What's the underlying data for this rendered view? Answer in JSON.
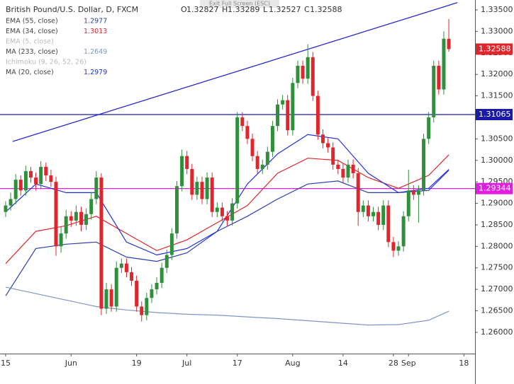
{
  "chart_data": {
    "type": "candlestick",
    "title": "British Pound/U.S. Dollar, D, FXCM",
    "overlay_button": "Exit Full Screen (ESC)",
    "ohlc_letters": [
      "O",
      "H",
      "L",
      "C"
    ],
    "up_color": "#2f8f3a",
    "down_color": "#e0262c",
    "ylim": [
      1.2567,
      1.3373
    ],
    "xlim": [
      -1.12,
      93.2
    ],
    "yticks": [
      {
        "value": 1.26,
        "label": "1.26000"
      },
      {
        "value": 1.265,
        "label": "1.26500"
      },
      {
        "value": 1.27,
        "label": "1.27000"
      },
      {
        "value": 1.275,
        "label": "1.27500"
      },
      {
        "value": 1.28,
        "label": "1.28000"
      },
      {
        "value": 1.285,
        "label": "1.28500"
      },
      {
        "value": 1.29,
        "label": "1.29000"
      },
      {
        "value": 1.295,
        "label": "1.29500"
      },
      {
        "value": 1.3,
        "label": "1.30000"
      },
      {
        "value": 1.305,
        "label": "1.30500"
      },
      {
        "value": 1.31,
        "label": "1.31000"
      },
      {
        "value": 1.315,
        "label": "1.31500"
      },
      {
        "value": 1.32,
        "label": "1.32000"
      },
      {
        "value": 1.325,
        "label": "1.32500"
      },
      {
        "value": 1.33,
        "label": "1.33000"
      },
      {
        "value": 1.335,
        "label": "1.33500"
      }
    ],
    "xticks": [
      {
        "value": 0,
        "label": "15"
      },
      {
        "value": 13,
        "label": "Jun"
      },
      {
        "value": 26,
        "label": "19"
      },
      {
        "value": 36,
        "label": "Jul"
      },
      {
        "value": 46,
        "label": "17"
      },
      {
        "value": 57,
        "label": "Aug"
      },
      {
        "value": 67,
        "label": "14"
      },
      {
        "value": 77,
        "label": "28"
      },
      {
        "value": 80,
        "label": "Sep"
      },
      {
        "value": 91,
        "label": "18"
      }
    ],
    "candles": [
      [
        1.288,
        1.2905,
        1.2868,
        1.2895
      ],
      [
        1.2895,
        1.2925,
        1.2883,
        1.291
      ],
      [
        1.291,
        1.2968,
        1.2898,
        1.2955
      ],
      [
        1.2955,
        1.2965,
        1.2918,
        1.293
      ],
      [
        1.293,
        1.2988,
        1.2918,
        1.2975
      ],
      [
        1.2975,
        1.2985,
        1.2948,
        1.296
      ],
      [
        1.296,
        1.2972,
        1.293,
        1.2945
      ],
      [
        1.2945,
        1.2998,
        1.2933,
        1.2985
      ],
      [
        1.2985,
        1.2995,
        1.2952,
        1.2965
      ],
      [
        1.2965,
        1.2978,
        1.2938,
        1.295
      ],
      [
        1.295,
        1.2962,
        1.2778,
        1.28
      ],
      [
        1.28,
        1.2845,
        1.2785,
        1.283
      ],
      [
        1.283,
        1.2885,
        1.2818,
        1.287
      ],
      [
        1.287,
        1.2882,
        1.2845,
        1.286
      ],
      [
        1.286,
        1.2895,
        1.2848,
        1.288
      ],
      [
        1.288,
        1.2892,
        1.2835,
        1.285
      ],
      [
        1.285,
        1.2888,
        1.2838,
        1.2875
      ],
      [
        1.2875,
        1.2925,
        1.2862,
        1.291
      ],
      [
        1.291,
        1.2975,
        1.2898,
        1.296
      ],
      [
        1.296,
        1.297,
        1.264,
        1.2655
      ],
      [
        1.2655,
        1.2715,
        1.2643,
        1.27
      ],
      [
        1.27,
        1.2712,
        1.2648,
        1.266
      ],
      [
        1.266,
        1.2765,
        1.2648,
        1.275
      ],
      [
        1.275,
        1.2772,
        1.2738,
        1.276
      ],
      [
        1.276,
        1.2772,
        1.2728,
        1.274
      ],
      [
        1.274,
        1.2752,
        1.2708,
        1.272
      ],
      [
        1.272,
        1.2732,
        1.2648,
        1.266
      ],
      [
        1.266,
        1.2672,
        1.2625,
        1.264
      ],
      [
        1.264,
        1.2692,
        1.2628,
        1.268
      ],
      [
        1.268,
        1.2712,
        1.2668,
        1.27
      ],
      [
        1.27,
        1.2728,
        1.2688,
        1.2715
      ],
      [
        1.2715,
        1.2762,
        1.2703,
        1.275
      ],
      [
        1.275,
        1.2792,
        1.2738,
        1.278
      ],
      [
        1.278,
        1.2842,
        1.2768,
        1.283
      ],
      [
        1.283,
        1.2952,
        1.2818,
        1.294
      ],
      [
        1.294,
        1.3025,
        1.2928,
        1.301
      ],
      [
        1.301,
        1.3022,
        1.2968,
        1.298
      ],
      [
        1.298,
        1.2992,
        1.2908,
        1.292
      ],
      [
        1.292,
        1.2962,
        1.2908,
        1.295
      ],
      [
        1.295,
        1.2962,
        1.2898,
        1.291
      ],
      [
        1.291,
        1.2972,
        1.2898,
        1.296
      ],
      [
        1.296,
        1.2972,
        1.2868,
        1.288
      ],
      [
        1.288,
        1.2902,
        1.2868,
        1.289
      ],
      [
        1.289,
        1.2902,
        1.2858,
        1.287
      ],
      [
        1.287,
        1.2882,
        1.2848,
        1.286
      ],
      [
        1.286,
        1.2912,
        1.2848,
        1.29
      ],
      [
        1.29,
        1.3112,
        1.2888,
        1.31
      ],
      [
        1.31,
        1.3112,
        1.3068,
        1.308
      ],
      [
        1.308,
        1.3092,
        1.3038,
        1.305
      ],
      [
        1.305,
        1.3062,
        1.2998,
        1.301
      ],
      [
        1.301,
        1.3022,
        1.2968,
        1.298
      ],
      [
        1.298,
        1.3002,
        1.2968,
        1.299
      ],
      [
        1.299,
        1.3032,
        1.2978,
        1.302
      ],
      [
        1.302,
        1.3092,
        1.3008,
        1.308
      ],
      [
        1.308,
        1.3142,
        1.3068,
        1.313
      ],
      [
        1.313,
        1.3152,
        1.3118,
        1.314
      ],
      [
        1.314,
        1.3152,
        1.3058,
        1.307
      ],
      [
        1.307,
        1.3192,
        1.3058,
        1.318
      ],
      [
        1.318,
        1.3232,
        1.3168,
        1.322
      ],
      [
        1.322,
        1.3232,
        1.3178,
        1.319
      ],
      [
        1.319,
        1.327,
        1.3178,
        1.324
      ],
      [
        1.324,
        1.3252,
        1.3138,
        1.315
      ],
      [
        1.315,
        1.3162,
        1.3048,
        1.306
      ],
      [
        1.306,
        1.3072,
        1.3028,
        1.304
      ],
      [
        1.304,
        1.3052,
        1.3018,
        1.303
      ],
      [
        1.303,
        1.3042,
        1.2978,
        1.299
      ],
      [
        1.299,
        1.3002,
        1.2968,
        1.298
      ],
      [
        1.298,
        1.2992,
        1.2948,
        1.296
      ],
      [
        1.296,
        1.3002,
        1.2948,
        1.299
      ],
      [
        1.299,
        1.3002,
        1.2958,
        1.297
      ],
      [
        1.297,
        1.2982,
        1.2848,
        1.288
      ],
      [
        1.288,
        1.2907,
        1.2868,
        1.2895
      ],
      [
        1.2895,
        1.2907,
        1.2858,
        1.287
      ],
      [
        1.287,
        1.2892,
        1.2858,
        1.288
      ],
      [
        1.288,
        1.2892,
        1.2838,
        1.285
      ],
      [
        1.285,
        1.2907,
        1.2838,
        1.2895
      ],
      [
        1.2895,
        1.2907,
        1.2798,
        1.281
      ],
      [
        1.281,
        1.2822,
        1.2775,
        1.279
      ],
      [
        1.279,
        1.2812,
        1.2778,
        1.28
      ],
      [
        1.28,
        1.2882,
        1.2788,
        1.287
      ],
      [
        1.287,
        1.2978,
        1.2858,
        1.293
      ],
      [
        1.293,
        1.2942,
        1.2908,
        1.292
      ],
      [
        1.292,
        1.2942,
        1.2855,
        1.293
      ],
      [
        1.293,
        1.3062,
        1.2918,
        1.305
      ],
      [
        1.305,
        1.3112,
        1.3038,
        1.31
      ],
      [
        1.31,
        1.3232,
        1.3088,
        1.322
      ],
      [
        1.322,
        1.3232,
        1.3153,
        1.3165
      ],
      [
        1.3165,
        1.33,
        1.3153,
        1.3283
      ],
      [
        1.32827,
        1.33289,
        1.32527,
        1.32588
      ]
    ],
    "series": [
      {
        "name": "EMA (55, close)",
        "color": "#2b3fb0",
        "x": [
          0,
          6,
          12,
          18,
          24,
          30,
          36,
          42,
          48,
          54,
          60,
          66,
          72,
          78,
          84,
          88
        ],
        "values": [
          1.2685,
          1.2795,
          1.2805,
          1.281,
          1.2775,
          1.2765,
          1.2785,
          1.2835,
          1.287,
          1.291,
          1.2945,
          1.2952,
          1.2925,
          1.2925,
          1.293,
          1.2977
        ]
      },
      {
        "name": "EMA (34, close)",
        "color": "#e0262c",
        "x": [
          0,
          6,
          12,
          18,
          24,
          30,
          36,
          42,
          48,
          54,
          60,
          66,
          72,
          78,
          84,
          88
        ],
        "values": [
          1.276,
          1.2835,
          1.2848,
          1.287,
          1.283,
          1.279,
          1.2815,
          1.2855,
          1.2895,
          1.297,
          1.3005,
          1.3,
          1.296,
          1.2935,
          1.2965,
          1.3013
        ]
      },
      {
        "name": "MA (233, close)",
        "color": "#7d95c6",
        "x": [
          0,
          6,
          12,
          18,
          24,
          30,
          36,
          42,
          48,
          54,
          60,
          66,
          72,
          78,
          84,
          88
        ],
        "values": [
          1.2705,
          1.269,
          1.2675,
          1.266,
          1.2652,
          1.2646,
          1.2642,
          1.264,
          1.2636,
          1.2632,
          1.2627,
          1.2622,
          1.2617,
          1.2618,
          1.2628,
          1.2649
        ]
      },
      {
        "name": "MA (20, close)",
        "color": "#1f2fe0",
        "x": [
          0,
          6,
          12,
          18,
          24,
          30,
          36,
          42,
          48,
          54,
          60,
          66,
          72,
          78,
          84,
          88
        ],
        "values": [
          1.288,
          1.2945,
          1.2925,
          1.2925,
          1.281,
          1.278,
          1.2795,
          1.2835,
          1.2945,
          1.3015,
          1.306,
          1.305,
          1.297,
          1.2925,
          1.2935,
          1.2979
        ]
      }
    ],
    "hidden_indicators": [
      "EMA (5, close)",
      "Ichimoku (9, 26, 52, 26)"
    ],
    "levels": [
      {
        "value": 1.31065,
        "color": "#1a1aa8"
      },
      {
        "value": 1.29344,
        "color": "#e11de1"
      }
    ],
    "trendline": {
      "color": "#2a2ad0",
      "x": [
        1.4,
        89.7
      ],
      "values": [
        1.3044,
        1.3367
      ]
    }
  }
}
